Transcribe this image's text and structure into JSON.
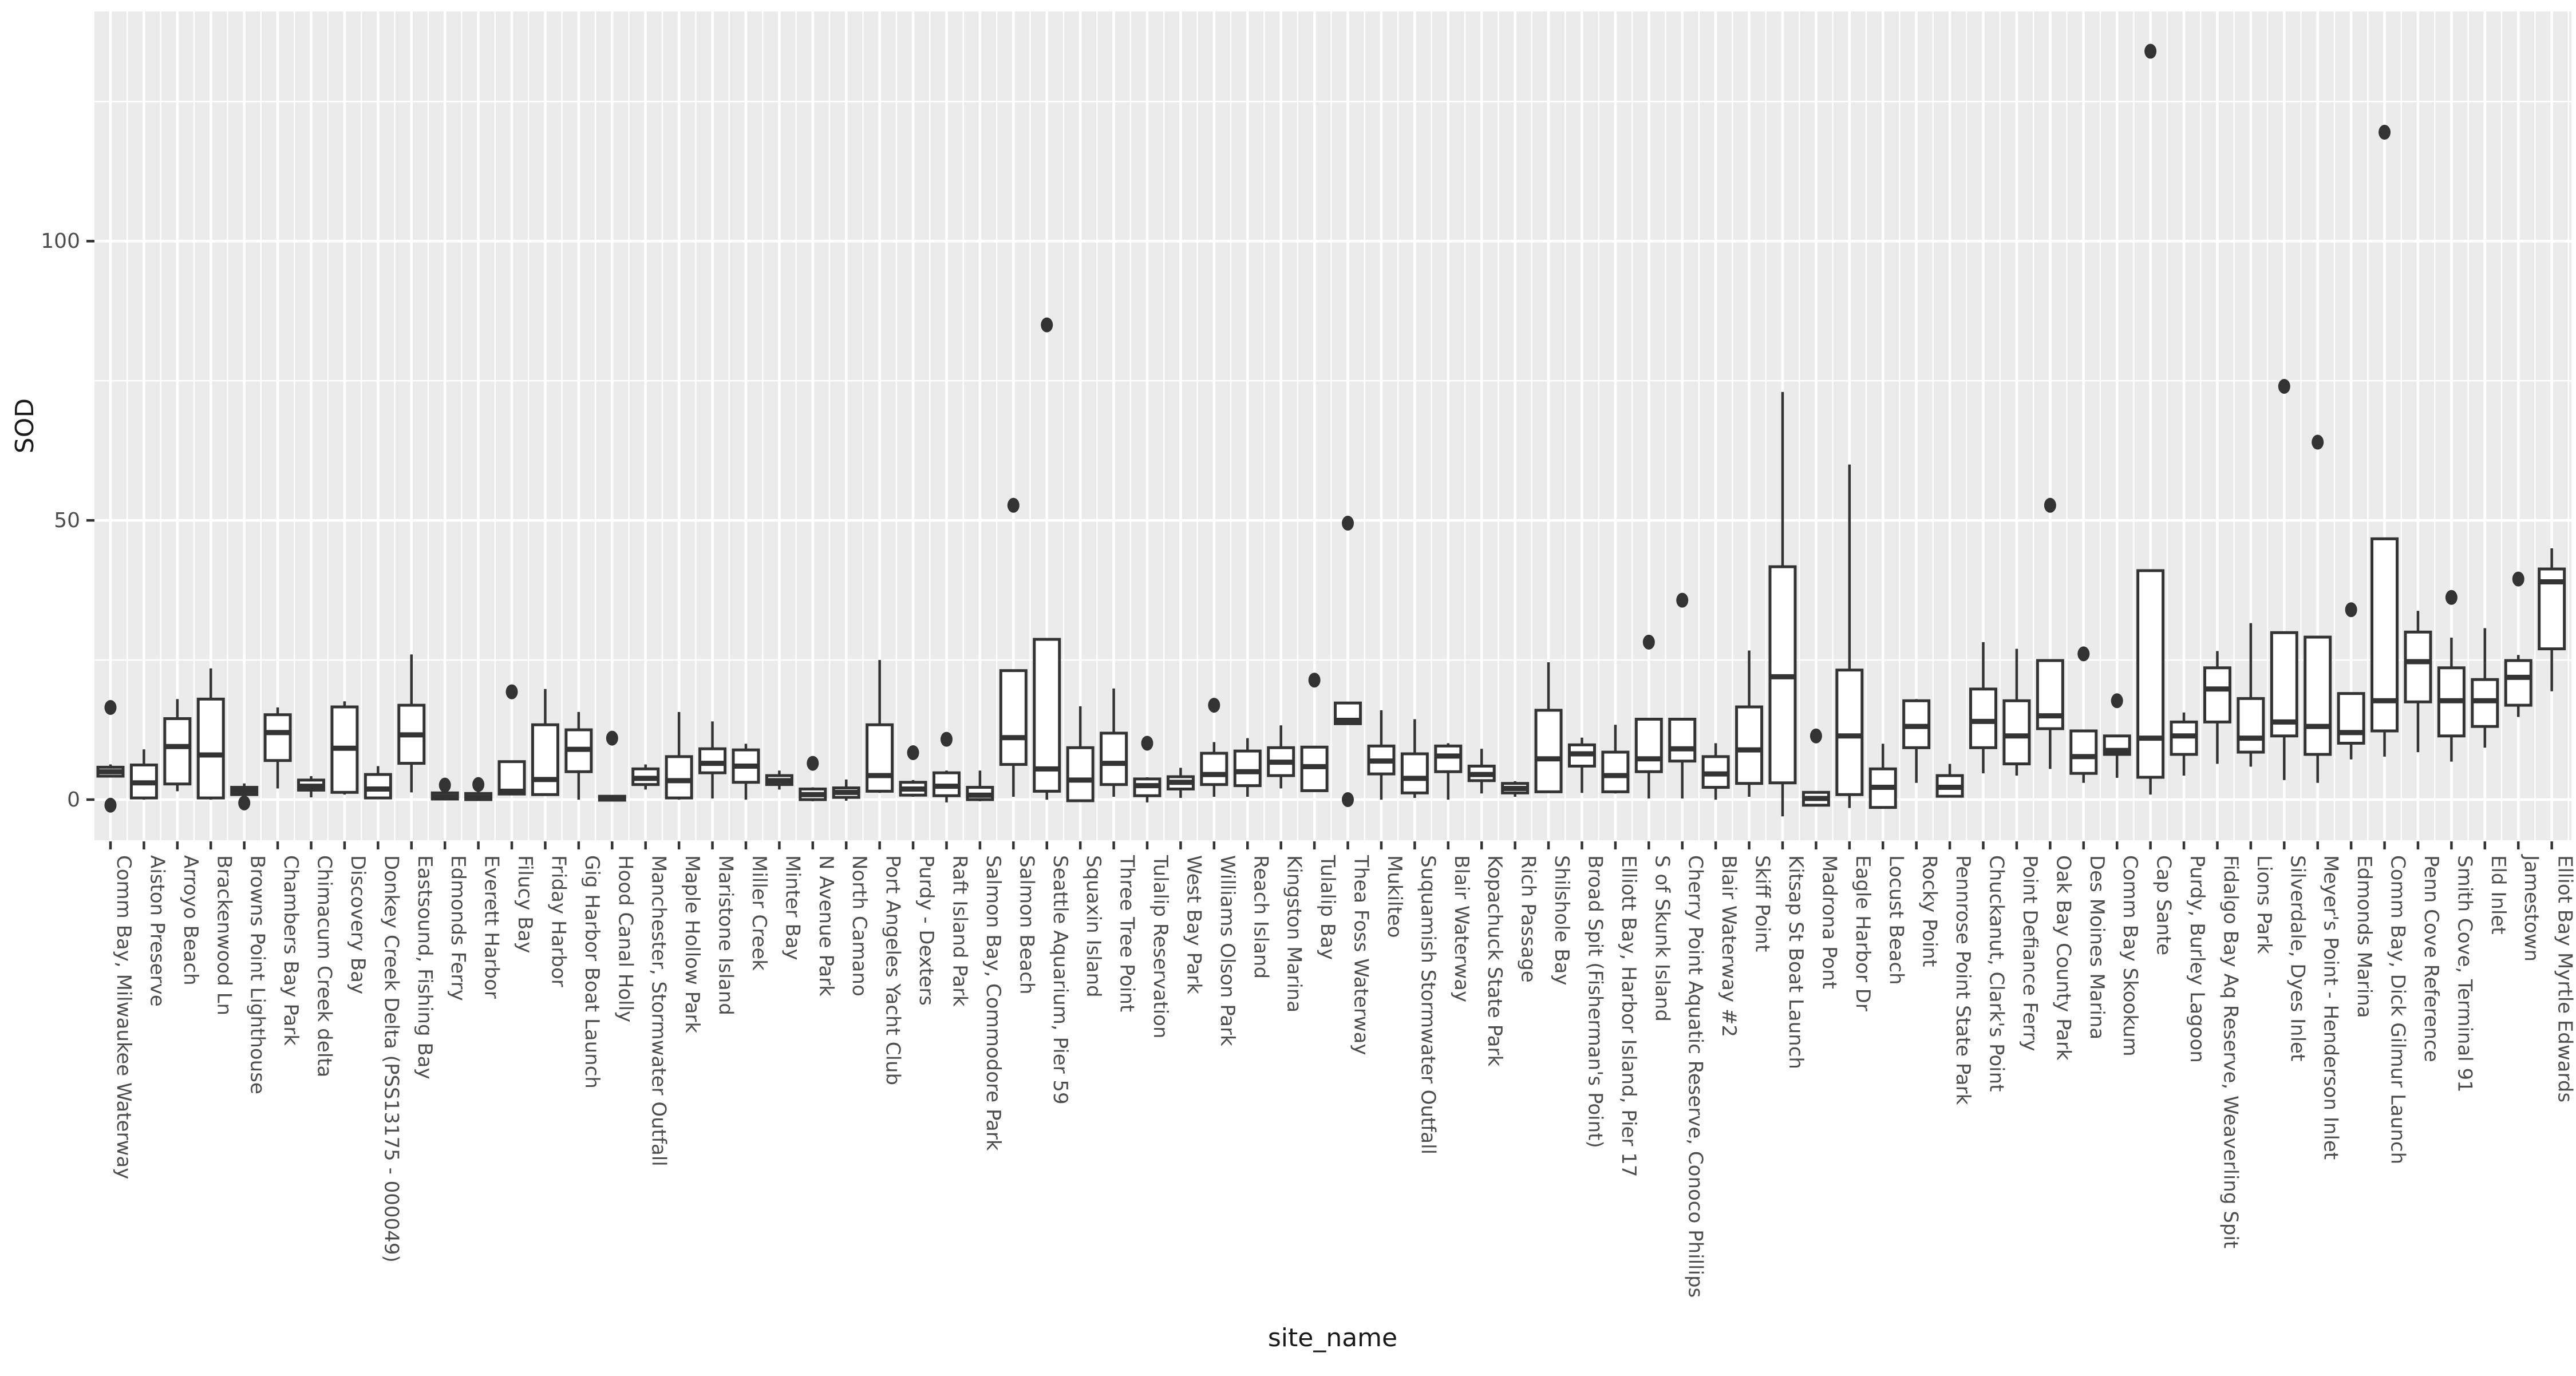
{
  "chart_data": {
    "type": "boxplot",
    "title": "",
    "xlabel": "site_name",
    "ylabel": "SOD",
    "y_tick_labels": [
      "0",
      "50",
      "100"
    ],
    "y_ticks": [
      0,
      50,
      100
    ],
    "y_minor_ticks": [
      25,
      75,
      125
    ],
    "ylim": [
      -7.3,
      141.2
    ],
    "grid": "major-and-minor, white on grey panel",
    "legend": false,
    "colors": {
      "panel_background": "#EBEBEB",
      "gridline": "#FFFFFF",
      "box_stroke": "#333333",
      "box_fill": "#FFFFFF",
      "outlier": "#333333",
      "tick_label": "#4D4D4D",
      "axis_title": "#1A1A1A",
      "tick_mark": "#333333",
      "page_background": "#FFFFFF"
    },
    "sites": [
      {
        "name": "Comm Bay, Milwaukee Waterway",
        "lo": 4.0,
        "q1": 4.2,
        "med": 5.0,
        "q3": 5.8,
        "hi": 6.3,
        "out": [
          16.5,
          -1.0
        ]
      },
      {
        "name": "Aiston Preserve",
        "lo": 0.0,
        "q1": 0.3,
        "med": 3.0,
        "q3": 6.2,
        "hi": 9.0,
        "out": []
      },
      {
        "name": "Arroyo Beach",
        "lo": 1.5,
        "q1": 2.8,
        "med": 9.5,
        "q3": 14.5,
        "hi": 18.0,
        "out": []
      },
      {
        "name": "Brackenwood Ln",
        "lo": 0.0,
        "q1": 0.3,
        "med": 8.0,
        "q3": 18.0,
        "hi": 23.5,
        "out": []
      },
      {
        "name": "Browns Point Lighthouse",
        "lo": 0.4,
        "q1": 0.9,
        "med": 1.5,
        "q3": 2.2,
        "hi": 2.9,
        "out": [
          -0.6
        ]
      },
      {
        "name": "Chambers Bay Park",
        "lo": 2.0,
        "q1": 7.0,
        "med": 12.0,
        "q3": 15.2,
        "hi": 16.5,
        "out": []
      },
      {
        "name": "Chimacum Creek delta",
        "lo": 0.4,
        "q1": 1.7,
        "med": 2.4,
        "q3": 3.5,
        "hi": 4.2,
        "out": []
      },
      {
        "name": "Discovery Bay",
        "lo": 0.9,
        "q1": 1.3,
        "med": 9.2,
        "q3": 16.6,
        "hi": 17.6,
        "out": []
      },
      {
        "name": "Donkey Creek Delta (PSS13175 - 000049)",
        "lo": 0.1,
        "q1": 0.3,
        "med": 1.9,
        "q3": 4.5,
        "hi": 6.0,
        "out": []
      },
      {
        "name": "Eastsound, Fishing Bay",
        "lo": 1.3,
        "q1": 6.5,
        "med": 11.6,
        "q3": 16.9,
        "hi": 26.0,
        "out": []
      },
      {
        "name": "Edmonds Ferry",
        "lo": 0.0,
        "q1": 0.1,
        "med": 0.5,
        "q3": 1.2,
        "hi": 1.6,
        "out": [
          2.6
        ]
      },
      {
        "name": "Everett Harbor",
        "lo": -0.2,
        "q1": 0.0,
        "med": 0.4,
        "q3": 1.1,
        "hi": 1.4,
        "out": [
          2.7
        ]
      },
      {
        "name": "Filucy Bay",
        "lo": 0.9,
        "q1": 1.0,
        "med": 1.5,
        "q3": 6.8,
        "hi": 7.0,
        "out": [
          19.3
        ]
      },
      {
        "name": "Friday Harbor",
        "lo": 0.7,
        "q1": 0.9,
        "med": 3.6,
        "q3": 13.4,
        "hi": 19.8,
        "out": []
      },
      {
        "name": "Gig Harbor Boat Launch",
        "lo": 0.0,
        "q1": 5.0,
        "med": 9.0,
        "q3": 12.5,
        "hi": 15.7,
        "out": []
      },
      {
        "name": "Hood Canal Holly",
        "lo": -0.3,
        "q1": -0.1,
        "med": 0.2,
        "q3": 0.6,
        "hi": 0.8,
        "out": [
          11.0
        ]
      },
      {
        "name": "Manchester, Stormwater Outfall",
        "lo": 1.8,
        "q1": 2.7,
        "med": 3.8,
        "q3": 5.5,
        "hi": 6.3,
        "out": []
      },
      {
        "name": "Maple Hollow Park",
        "lo": 0.0,
        "q1": 0.3,
        "med": 3.4,
        "q3": 7.7,
        "hi": 15.7,
        "out": []
      },
      {
        "name": "Maristone Island",
        "lo": 0.2,
        "q1": 4.8,
        "med": 6.5,
        "q3": 9.1,
        "hi": 14.0,
        "out": []
      },
      {
        "name": "Miller Creek",
        "lo": 0.0,
        "q1": 3.1,
        "med": 6.0,
        "q3": 8.9,
        "hi": 10.0,
        "out": []
      },
      {
        "name": "Minter Bay",
        "lo": 1.8,
        "q1": 2.7,
        "med": 3.4,
        "q3": 4.3,
        "hi": 5.2,
        "out": []
      },
      {
        "name": "N Avenue Park",
        "lo": -0.3,
        "q1": 0.0,
        "med": 0.9,
        "q3": 1.9,
        "hi": 2.2,
        "out": [
          6.5
        ]
      },
      {
        "name": "North Camano",
        "lo": -0.2,
        "q1": 0.4,
        "med": 1.3,
        "q3": 2.1,
        "hi": 3.6,
        "out": []
      },
      {
        "name": "Port Angeles Yacht Club",
        "lo": 1.2,
        "q1": 1.5,
        "med": 4.3,
        "q3": 13.4,
        "hi": 25.0,
        "out": []
      },
      {
        "name": "Purdy - Dexters",
        "lo": 0.5,
        "q1": 0.8,
        "med": 1.9,
        "q3": 3.1,
        "hi": 3.5,
        "out": [
          8.4
        ]
      },
      {
        "name": "Raft Island Park",
        "lo": -0.5,
        "q1": 0.7,
        "med": 2.4,
        "q3": 4.8,
        "hi": 5.2,
        "out": [
          10.8
        ]
      },
      {
        "name": "Salmon Bay, Commodore Park",
        "lo": -0.3,
        "q1": 0.0,
        "med": 0.8,
        "q3": 2.2,
        "hi": 5.2,
        "out": []
      },
      {
        "name": "Salmon Beach",
        "lo": 0.5,
        "q1": 6.3,
        "med": 11.1,
        "q3": 23.1,
        "hi": 23.1,
        "out": [
          52.7
        ]
      },
      {
        "name": "Seattle Aquarium, Pier 59",
        "lo": 0.0,
        "q1": 1.5,
        "med": 5.5,
        "q3": 28.7,
        "hi": 28.7,
        "out": [
          85.0
        ]
      },
      {
        "name": "Squaxin Island",
        "lo": -0.3,
        "q1": -0.2,
        "med": 3.5,
        "q3": 9.3,
        "hi": 16.7,
        "out": []
      },
      {
        "name": "Three Tree Point",
        "lo": 0.5,
        "q1": 2.7,
        "med": 6.5,
        "q3": 11.9,
        "hi": 19.9,
        "out": []
      },
      {
        "name": "Tulalip Reservation",
        "lo": -0.5,
        "q1": 0.7,
        "med": 2.5,
        "q3": 3.7,
        "hi": 4.0,
        "out": [
          10.1
        ]
      },
      {
        "name": "West Bay Park",
        "lo": 0.3,
        "q1": 1.9,
        "med": 3.1,
        "q3": 4.1,
        "hi": 5.7,
        "out": []
      },
      {
        "name": "Williams Olson Park",
        "lo": 0.5,
        "q1": 2.7,
        "med": 4.5,
        "q3": 8.3,
        "hi": 10.3,
        "out": [
          16.9
        ]
      },
      {
        "name": "Reach Island",
        "lo": 0.5,
        "q1": 2.5,
        "med": 5.0,
        "q3": 8.7,
        "hi": 11.0,
        "out": []
      },
      {
        "name": "Kingston Marina",
        "lo": 2.0,
        "q1": 4.3,
        "med": 6.7,
        "q3": 9.3,
        "hi": 13.3,
        "out": []
      },
      {
        "name": "Tulalip Bay",
        "lo": 1.4,
        "q1": 1.6,
        "med": 5.9,
        "q3": 9.4,
        "hi": 9.6,
        "out": [
          21.4
        ]
      },
      {
        "name": "Thea Foss Waterway",
        "lo": 13.4,
        "q1": 13.6,
        "med": 14.2,
        "q3": 17.3,
        "hi": 17.5,
        "out": [
          49.5,
          0.0
        ]
      },
      {
        "name": "Mukilteo",
        "lo": 0.0,
        "q1": 4.6,
        "med": 6.9,
        "q3": 9.6,
        "hi": 16.0,
        "out": []
      },
      {
        "name": "Suquamish Stormwater Outfall",
        "lo": 0.3,
        "q1": 1.2,
        "med": 3.8,
        "q3": 8.2,
        "hi": 14.4,
        "out": []
      },
      {
        "name": "Blair Waterway",
        "lo": 0.0,
        "q1": 5.0,
        "med": 7.8,
        "q3": 9.6,
        "hi": 10.1,
        "out": []
      },
      {
        "name": "Kopachuck State Park",
        "lo": 1.1,
        "q1": 3.4,
        "med": 4.5,
        "q3": 6.0,
        "hi": 9.1,
        "out": []
      },
      {
        "name": "Rich Passage",
        "lo": 0.5,
        "q1": 1.2,
        "med": 2.0,
        "q3": 2.9,
        "hi": 3.3,
        "out": []
      },
      {
        "name": "Shilshole Bay",
        "lo": 1.2,
        "q1": 1.4,
        "med": 7.3,
        "q3": 16.0,
        "hi": 24.6,
        "out": []
      },
      {
        "name": "Broad Spit (Fisherman's Point)",
        "lo": 1.2,
        "q1": 6.0,
        "med": 8.2,
        "q3": 9.8,
        "hi": 11.1,
        "out": []
      },
      {
        "name": "Elliott Bay, Harbor Island, Pier 17",
        "lo": 1.1,
        "q1": 1.4,
        "med": 4.3,
        "q3": 8.5,
        "hi": 13.4,
        "out": []
      },
      {
        "name": "S of Skunk Island",
        "lo": 0.2,
        "q1": 5.0,
        "med": 7.3,
        "q3": 14.4,
        "hi": 14.4,
        "out": [
          28.2
        ]
      },
      {
        "name": "Cherry Point Aquatic Reserve, Conoco Phillips",
        "lo": 0.2,
        "q1": 6.9,
        "med": 9.1,
        "q3": 14.4,
        "hi": 14.4,
        "out": [
          35.7
        ]
      },
      {
        "name": "Blair Waterway #2",
        "lo": 0.0,
        "q1": 2.2,
        "med": 4.6,
        "q3": 7.7,
        "hi": 10.1,
        "out": []
      },
      {
        "name": "Skiff Point",
        "lo": 0.5,
        "q1": 2.9,
        "med": 8.9,
        "q3": 16.6,
        "hi": 26.7,
        "out": []
      },
      {
        "name": "Kitsap St Boat Launch",
        "lo": -3.0,
        "q1": 3.0,
        "med": 22.0,
        "q3": 41.7,
        "hi": 73.0,
        "out": []
      },
      {
        "name": "Madrona Pont",
        "lo": -1.2,
        "q1": -1.0,
        "med": 0.2,
        "q3": 1.3,
        "hi": 1.5,
        "out": [
          11.4
        ]
      },
      {
        "name": "Eagle Harbor Dr",
        "lo": -1.5,
        "q1": 0.9,
        "med": 11.4,
        "q3": 23.2,
        "hi": 60.0,
        "out": []
      },
      {
        "name": "Locust Beach",
        "lo": -1.6,
        "q1": -1.4,
        "med": 2.2,
        "q3": 5.5,
        "hi": 10.0,
        "out": []
      },
      {
        "name": "Rocky Point",
        "lo": 3.0,
        "q1": 9.3,
        "med": 13.1,
        "q3": 17.7,
        "hi": 18.0,
        "out": []
      },
      {
        "name": "Pennrose Point State Park",
        "lo": 0.5,
        "q1": 0.6,
        "med": 2.2,
        "q3": 4.3,
        "hi": 6.4,
        "out": []
      },
      {
        "name": "Chuckanut, Clark's Point",
        "lo": 4.7,
        "q1": 9.3,
        "med": 14.0,
        "q3": 19.8,
        "hi": 28.2,
        "out": []
      },
      {
        "name": "Point Defiance Ferry",
        "lo": 4.3,
        "q1": 6.4,
        "med": 11.4,
        "q3": 17.7,
        "hi": 27.0,
        "out": []
      },
      {
        "name": "Oak Bay County Park",
        "lo": 5.5,
        "q1": 12.7,
        "med": 15.0,
        "q3": 24.9,
        "hi": 24.9,
        "out": [
          52.7
        ]
      },
      {
        "name": "Des Moines Marina",
        "lo": 3.0,
        "q1": 4.7,
        "med": 7.7,
        "q3": 12.3,
        "hi": 12.5,
        "out": [
          26.1
        ]
      },
      {
        "name": "Comm Bay Skookum",
        "lo": 3.9,
        "q1": 8.1,
        "med": 8.8,
        "q3": 11.4,
        "hi": 11.5,
        "out": [
          17.7
        ]
      },
      {
        "name": "Cap Sante",
        "lo": 0.9,
        "q1": 4.0,
        "med": 11.0,
        "q3": 41.0,
        "hi": 41.0,
        "out": [
          134.0
        ]
      },
      {
        "name": "Purdy, Burley Lagoon",
        "lo": 4.3,
        "q1": 8.1,
        "med": 11.4,
        "q3": 13.9,
        "hi": 15.6,
        "out": []
      },
      {
        "name": "Fidalgo Bay Aq Reserve, Weaverling Spit",
        "lo": 6.4,
        "q1": 13.9,
        "med": 19.8,
        "q3": 23.6,
        "hi": 26.6,
        "out": []
      },
      {
        "name": "Lions Park",
        "lo": 5.9,
        "q1": 8.5,
        "med": 11.0,
        "q3": 18.1,
        "hi": 31.6,
        "out": []
      },
      {
        "name": "Silverdale, Dyes Inlet",
        "lo": 3.5,
        "q1": 11.4,
        "med": 13.9,
        "q3": 29.9,
        "hi": 29.9,
        "out": [
          74.0
        ]
      },
      {
        "name": "Meyer's Point - Henderson Inlet",
        "lo": 3.0,
        "q1": 8.1,
        "med": 13.1,
        "q3": 29.1,
        "hi": 29.1,
        "out": [
          64.0
        ]
      },
      {
        "name": "Edmonds Marina",
        "lo": 7.2,
        "q1": 10.1,
        "med": 12.0,
        "q3": 19.0,
        "hi": 19.0,
        "out": [
          34.0
        ]
      },
      {
        "name": "Comm Bay, Dick Gilmur Launch",
        "lo": 7.7,
        "q1": 12.3,
        "med": 17.7,
        "q3": 46.7,
        "hi": 46.7,
        "out": [
          119.5
        ]
      },
      {
        "name": "Penn Cove Reference",
        "lo": 8.5,
        "q1": 17.5,
        "med": 24.7,
        "q3": 30.0,
        "hi": 33.8,
        "out": []
      },
      {
        "name": "Smith Cove, Terminal 91",
        "lo": 6.8,
        "q1": 11.4,
        "med": 17.7,
        "q3": 23.6,
        "hi": 29.0,
        "out": [
          36.2
        ]
      },
      {
        "name": "Eld Inlet",
        "lo": 9.3,
        "q1": 13.1,
        "med": 17.7,
        "q3": 21.5,
        "hi": 30.7,
        "out": []
      },
      {
        "name": "Jamestown",
        "lo": 14.8,
        "q1": 16.9,
        "med": 21.9,
        "q3": 24.9,
        "hi": 25.9,
        "out": [
          39.5
        ]
      },
      {
        "name": "Elliot Bay Myrtle Edwards",
        "lo": 19.4,
        "q1": 27.0,
        "med": 39.0,
        "q3": 41.3,
        "hi": 45.0,
        "out": []
      }
    ]
  }
}
